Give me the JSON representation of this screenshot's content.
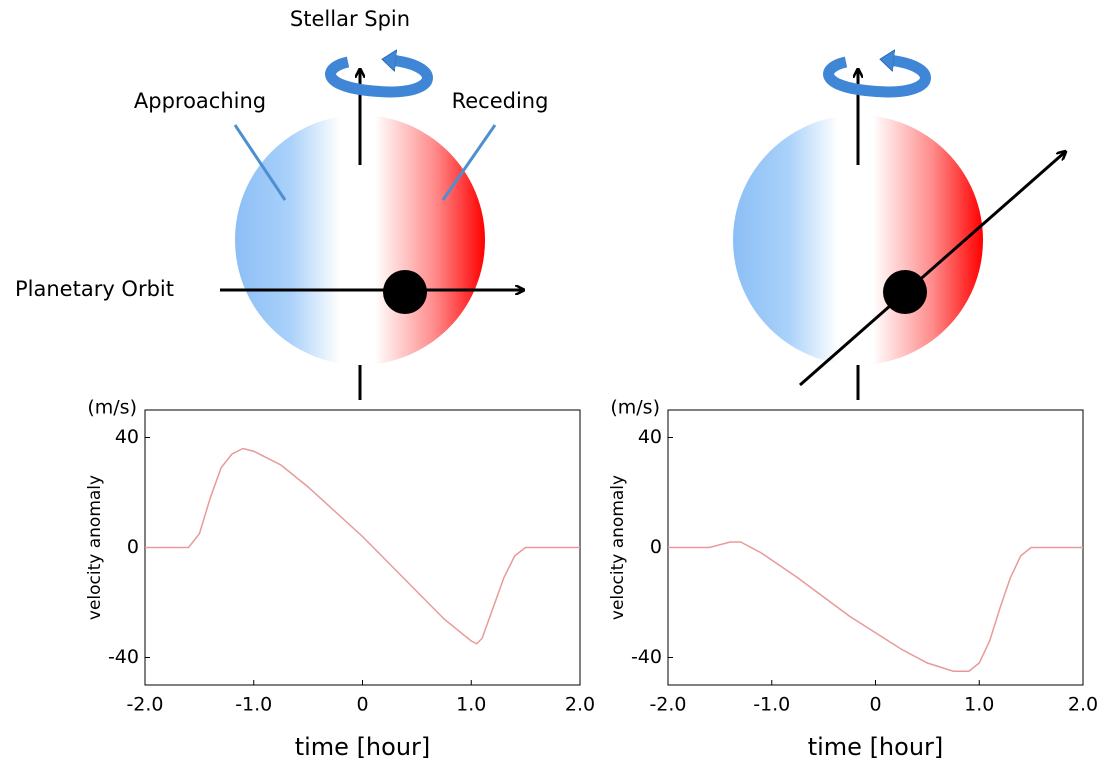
{
  "diagram": {
    "spin_label": "Stellar Spin",
    "approaching_label": "Approaching",
    "receding_label": "Receding",
    "orbit_label": "Planetary Orbit"
  },
  "chart_data": [
    {
      "type": "line",
      "y_unit": "(m/s)",
      "ylabel": "velocity anomaly",
      "xlabel": "time [hour]",
      "color": "#e89a9a",
      "x": [
        -2,
        -1.6,
        -1.5,
        -1.4,
        -1.3,
        -1.2,
        -1.1,
        -1.0,
        -0.75,
        -0.5,
        -0.25,
        0,
        0.25,
        0.5,
        0.75,
        1.0,
        1.05,
        1.1,
        1.2,
        1.3,
        1.4,
        1.5,
        2.0
      ],
      "values": [
        0,
        0,
        5,
        18,
        29,
        34,
        36,
        35,
        30,
        22,
        13,
        4,
        -6,
        -16,
        -26,
        -34,
        -35,
        -33,
        -22,
        -11,
        -3,
        0,
        0
      ],
      "xlim": [
        -2,
        2
      ],
      "ylim": [
        -50,
        50
      ],
      "xticks": [
        {
          "value": -2,
          "label": "-2.0"
        },
        {
          "value": -1,
          "label": "-1.0"
        },
        0,
        {
          "value": 1,
          "label": "1.0"
        },
        {
          "value": 2,
          "label": "2.0"
        }
      ],
      "yticks": [
        -40,
        0,
        40
      ]
    },
    {
      "type": "line",
      "y_unit": "(m/s)",
      "ylabel": "velocity anomaly",
      "xlabel": "time [hour]",
      "color": "#e89a9a",
      "x": [
        -2,
        -1.6,
        -1.4,
        -1.3,
        -1.1,
        -0.75,
        -0.5,
        -0.25,
        0,
        0.25,
        0.5,
        0.75,
        0.9,
        1.0,
        1.1,
        1.2,
        1.3,
        1.4,
        1.5,
        2.0
      ],
      "values": [
        0,
        0,
        2,
        2,
        -2,
        -11,
        -18,
        -25,
        -31,
        -37,
        -42,
        -45,
        -45,
        -42,
        -34,
        -22,
        -11,
        -3,
        0,
        0
      ],
      "xlim": [
        -2,
        2
      ],
      "ylim": [
        -50,
        50
      ],
      "xticks": [
        {
          "value": -2,
          "label": "-2.0"
        },
        {
          "value": -1,
          "label": "-1.0"
        },
        0,
        {
          "value": 1,
          "label": "1.0"
        },
        {
          "value": 2,
          "label": "2.0"
        }
      ],
      "yticks": [
        -40,
        0,
        40
      ]
    }
  ]
}
